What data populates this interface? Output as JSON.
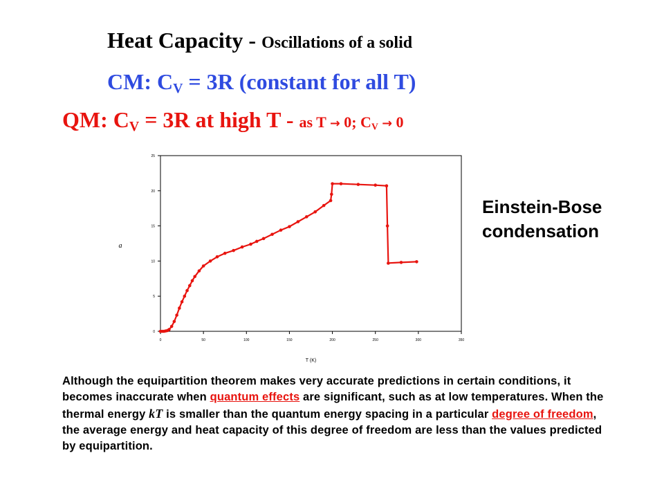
{
  "slide": {
    "title_main": "Heat Capacity - ",
    "title_small": "Oscillations of a solid",
    "cm_prefix": "CM:  C",
    "cm_sub": "V",
    "cm_suffix": " = 3R (constant for all T)",
    "qm_prefix": "QM:  C",
    "qm_sub": "V",
    "qm_mid": " = 3R at high T - ",
    "qm_small_1": "as T ",
    "qm_arrow": "→",
    "qm_small_2": " 0;  C",
    "qm_sub2": "V",
    "qm_small_3": " ",
    "qm_arrow2": "→",
    "qm_small_4": " 0",
    "side_line1": "Einstein-Bose",
    "side_line2": "condensation"
  },
  "paragraph": {
    "p1": "Although the equipartition theorem makes very accurate predictions in certain conditions, it becomes inaccurate when ",
    "link1": "quantum effects",
    "p2": " are significant, such as at low temperatures. When the thermal energy ",
    "math": "kT",
    "p3": " is smaller than the quantum energy spacing in a particular ",
    "link2": "degree of freedom",
    "p4": ", the average energy and heat capacity of this degree of freedom are less than the values predicted by equipartition."
  },
  "chart_data": {
    "type": "line",
    "xlabel": "T  (K)",
    "ylabel": "a",
    "xlim": [
      0,
      350
    ],
    "ylim": [
      0,
      25
    ],
    "x_ticks": [
      "0",
      "50",
      "100",
      "150",
      "200",
      "250",
      "300",
      "350"
    ],
    "y_ticks": [
      "0",
      "5",
      "10",
      "15",
      "20",
      "25"
    ],
    "grid": false,
    "line_color": "#e8140f",
    "series": [
      {
        "x": [
          0,
          2,
          4,
          6,
          8,
          10,
          13,
          16,
          19,
          22,
          25,
          28,
          31,
          34,
          37,
          40,
          45,
          50,
          58,
          66,
          75,
          85,
          95,
          105,
          112,
          120,
          130,
          140,
          150,
          160,
          170,
          180,
          190,
          198,
          199,
          200,
          210,
          230,
          250,
          263,
          264,
          265,
          280,
          298
        ],
        "y": [
          0,
          0,
          0,
          0.05,
          0.1,
          0.25,
          0.7,
          1.4,
          2.3,
          3.3,
          4.2,
          5.0,
          5.8,
          6.5,
          7.2,
          7.8,
          8.6,
          9.3,
          10.0,
          10.6,
          11.1,
          11.5,
          12.0,
          12.4,
          12.8,
          13.2,
          13.8,
          14.4,
          14.9,
          15.6,
          16.3,
          17.0,
          17.9,
          18.6,
          19.5,
          21.0,
          21.0,
          20.9,
          20.8,
          20.7,
          15.0,
          9.7,
          9.8,
          9.9
        ]
      }
    ]
  }
}
